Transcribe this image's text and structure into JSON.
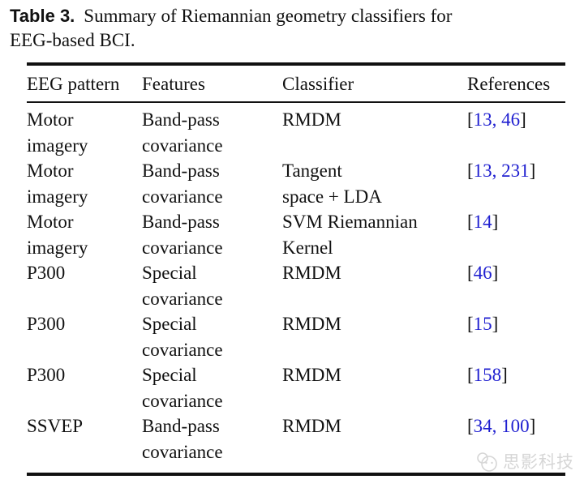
{
  "caption": {
    "label": "Table 3.",
    "text": "Summary of Riemannian geometry classifiers for\nEEG-based BCI."
  },
  "table": {
    "columns": [
      "EEG pattern",
      "Features",
      "Classifier",
      "References"
    ],
    "rows": [
      {
        "eeg_pattern": [
          "Motor",
          "imagery"
        ],
        "features": [
          "Band-pass",
          "covariance"
        ],
        "classifier": [
          "RMDM"
        ],
        "references": [
          "13",
          "46"
        ]
      },
      {
        "eeg_pattern": [
          "Motor",
          "imagery"
        ],
        "features": [
          "Band-pass",
          "covariance"
        ],
        "classifier": [
          "Tangent",
          "space + LDA"
        ],
        "references": [
          "13",
          "231"
        ]
      },
      {
        "eeg_pattern": [
          "Motor",
          "imagery"
        ],
        "features": [
          "Band-pass",
          "covariance"
        ],
        "classifier": [
          "SVM Riemannian",
          "Kernel"
        ],
        "references": [
          "14"
        ]
      },
      {
        "eeg_pattern": [
          "P300"
        ],
        "features": [
          "Special",
          "covariance"
        ],
        "classifier": [
          "RMDM"
        ],
        "references": [
          "46"
        ]
      },
      {
        "eeg_pattern": [
          "P300"
        ],
        "features": [
          "Special",
          "covariance"
        ],
        "classifier": [
          "RMDM"
        ],
        "references": [
          "15"
        ]
      },
      {
        "eeg_pattern": [
          "P300"
        ],
        "features": [
          "Special",
          "covariance"
        ],
        "classifier": [
          "RMDM"
        ],
        "references": [
          "158"
        ]
      },
      {
        "eeg_pattern": [
          "SSVEP"
        ],
        "features": [
          "Band-pass",
          "covariance"
        ],
        "classifier": [
          "RMDM"
        ],
        "references": [
          "34",
          "100"
        ]
      }
    ]
  },
  "watermark": {
    "text": "思影科技",
    "icon": "chat-face-logo"
  },
  "colors": {
    "text": "#111111",
    "citation_blue": "#1f1fd0",
    "rule": "#111111",
    "watermark_gray": "#d6d6d6",
    "background": "#ffffff"
  }
}
